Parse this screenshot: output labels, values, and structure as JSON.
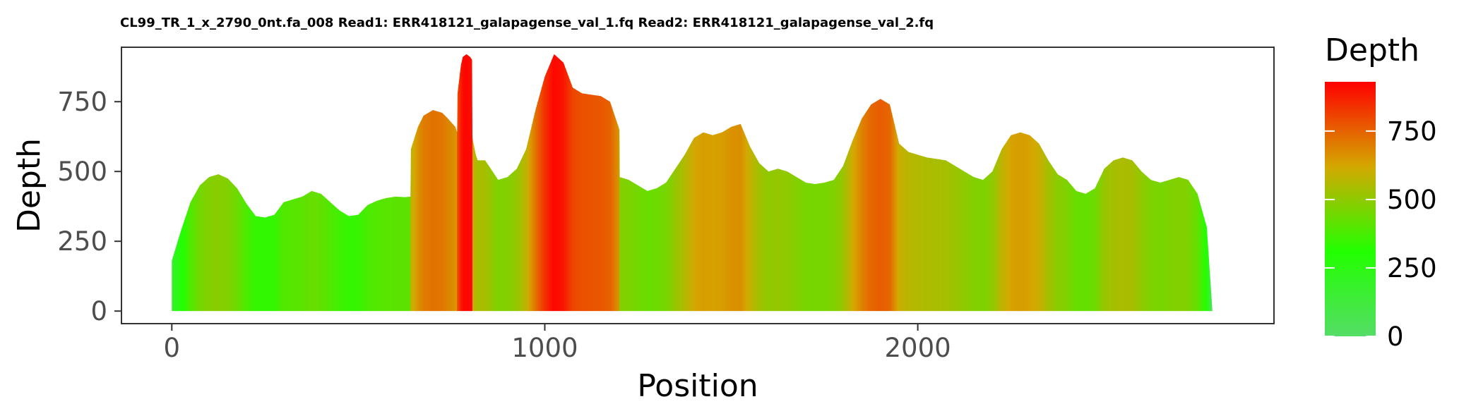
{
  "chart_data": {
    "type": "area",
    "title": "CL99_TR_1_x_2790_0nt.fa_008 Read1: ERR418121_galapagense_val_1.fq Read2: ERR418121_galapagense_val_2.fq",
    "xlabel": "Position",
    "ylabel": "Depth",
    "xlim": [
      -135,
      2955
    ],
    "ylim": [
      -45,
      945
    ],
    "x_ticks": [
      0,
      1000,
      2000
    ],
    "x_tick_labels": [
      "0",
      "1000",
      "2000"
    ],
    "y_ticks": [
      0,
      250,
      500,
      750
    ],
    "y_tick_labels": [
      "0",
      "250",
      "500",
      "750"
    ],
    "grid": false,
    "fill_colored_by": "depth",
    "legend": {
      "title": "Depth",
      "placement": "right",
      "ticks": [
        0,
        250,
        500,
        750
      ],
      "tick_labels": [
        "0",
        "250",
        "500",
        "750"
      ],
      "range": [
        0,
        930
      ],
      "colors": [
        "#55dd66",
        "#22ff00",
        "#d4a800",
        "#ff0000"
      ]
    },
    "series": [
      {
        "x": [
          0,
          1,
          25,
          50,
          75,
          100,
          125,
          150,
          175,
          200,
          225,
          250,
          275,
          300,
          325,
          350,
          375,
          400,
          425,
          450,
          475,
          500,
          525,
          550,
          575,
          600,
          625,
          640,
          641,
          660,
          675,
          700,
          725,
          740,
          760,
          765,
          766,
          775,
          780,
          790,
          800,
          805,
          806,
          815,
          820,
          840,
          850,
          875,
          900,
          925,
          950,
          975,
          1000,
          1025,
          1050,
          1075,
          1100,
          1125,
          1150,
          1175,
          1200,
          1201,
          1225,
          1250,
          1275,
          1300,
          1325,
          1350,
          1375,
          1400,
          1425,
          1450,
          1475,
          1500,
          1525,
          1550,
          1575,
          1600,
          1625,
          1650,
          1675,
          1700,
          1725,
          1750,
          1775,
          1800,
          1825,
          1850,
          1875,
          1900,
          1925,
          1950,
          1975,
          2000,
          2025,
          2050,
          2075,
          2100,
          2125,
          2150,
          2175,
          2200,
          2225,
          2250,
          2275,
          2300,
          2325,
          2350,
          2375,
          2400,
          2425,
          2450,
          2475,
          2500,
          2525,
          2550,
          2575,
          2600,
          2625,
          2650,
          2675,
          2700,
          2725,
          2750,
          2775,
          2790,
          2791,
          2820
        ],
        "y": [
          180,
          185,
          290,
          390,
          450,
          480,
          490,
          475,
          440,
          385,
          340,
          335,
          345,
          390,
          400,
          410,
          430,
          420,
          390,
          360,
          340,
          345,
          380,
          395,
          405,
          410,
          408,
          410,
          580,
          660,
          700,
          720,
          710,
          690,
          660,
          640,
          780,
          880,
          910,
          920,
          910,
          900,
          620,
          560,
          540,
          540,
          520,
          470,
          480,
          510,
          580,
          720,
          840,
          920,
          890,
          800,
          780,
          775,
          770,
          750,
          650,
          480,
          470,
          450,
          430,
          440,
          460,
          510,
          560,
          620,
          640,
          630,
          640,
          660,
          670,
          590,
          530,
          500,
          510,
          500,
          480,
          460,
          455,
          460,
          470,
          520,
          610,
          690,
          740,
          760,
          740,
          600,
          570,
          560,
          550,
          545,
          540,
          520,
          500,
          480,
          470,
          500,
          580,
          630,
          640,
          630,
          600,
          540,
          490,
          470,
          430,
          420,
          440,
          510,
          540,
          550,
          540,
          500,
          470,
          460,
          470,
          480,
          470,
          420,
          300,
          0,
          0,
          0
        ]
      }
    ]
  }
}
